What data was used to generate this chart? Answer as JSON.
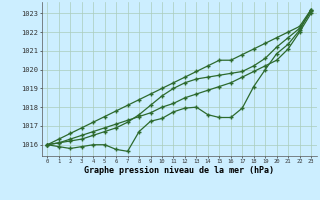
{
  "xlabel": "Graphe pression niveau de la mer (hPa)",
  "x_labels": [
    "0",
    "1",
    "2",
    "3",
    "4",
    "5",
    "6",
    "7",
    "8",
    "9",
    "10",
    "11",
    "12",
    "13",
    "14",
    "15",
    "16",
    "17",
    "18",
    "19",
    "20",
    "21",
    "22",
    "23"
  ],
  "ylim": [
    1015.4,
    1023.6
  ],
  "yticks": [
    1016,
    1017,
    1018,
    1019,
    1020,
    1021,
    1022,
    1023
  ],
  "background_color": "#cceeff",
  "grid_color": "#aaccbb",
  "line_color": "#2d6a2d",
  "series_straight1": [
    1016.0,
    1016.3,
    1016.6,
    1016.9,
    1017.2,
    1017.5,
    1017.8,
    1018.1,
    1018.4,
    1018.7,
    1019.0,
    1019.3,
    1019.6,
    1019.9,
    1020.2,
    1020.5,
    1020.5,
    1020.8,
    1021.1,
    1021.4,
    1021.7,
    1022.0,
    1022.3,
    1023.2
  ],
  "series_straight2": [
    1016.0,
    1016.1,
    1016.3,
    1016.5,
    1016.7,
    1016.9,
    1017.1,
    1017.3,
    1017.5,
    1017.7,
    1018.0,
    1018.2,
    1018.5,
    1018.7,
    1018.9,
    1019.1,
    1019.3,
    1019.6,
    1019.9,
    1020.2,
    1020.5,
    1021.1,
    1022.0,
    1023.0
  ],
  "series_main": [
    1016.0,
    1015.9,
    1015.8,
    1015.9,
    1016.0,
    1016.0,
    1015.75,
    1015.65,
    1016.7,
    1017.25,
    1017.4,
    1017.75,
    1017.95,
    1018.0,
    1017.6,
    1017.45,
    1017.45,
    1017.95,
    1019.1,
    1020.0,
    1020.85,
    1021.35,
    1022.1,
    1023.2
  ],
  "series_upper": [
    1016.0,
    1016.1,
    1016.2,
    1016.3,
    1016.5,
    1016.7,
    1016.9,
    1017.2,
    1017.6,
    1018.1,
    1018.6,
    1019.0,
    1019.3,
    1019.5,
    1019.6,
    1019.7,
    1019.8,
    1019.9,
    1020.2,
    1020.6,
    1021.2,
    1021.7,
    1022.2,
    1023.1
  ]
}
